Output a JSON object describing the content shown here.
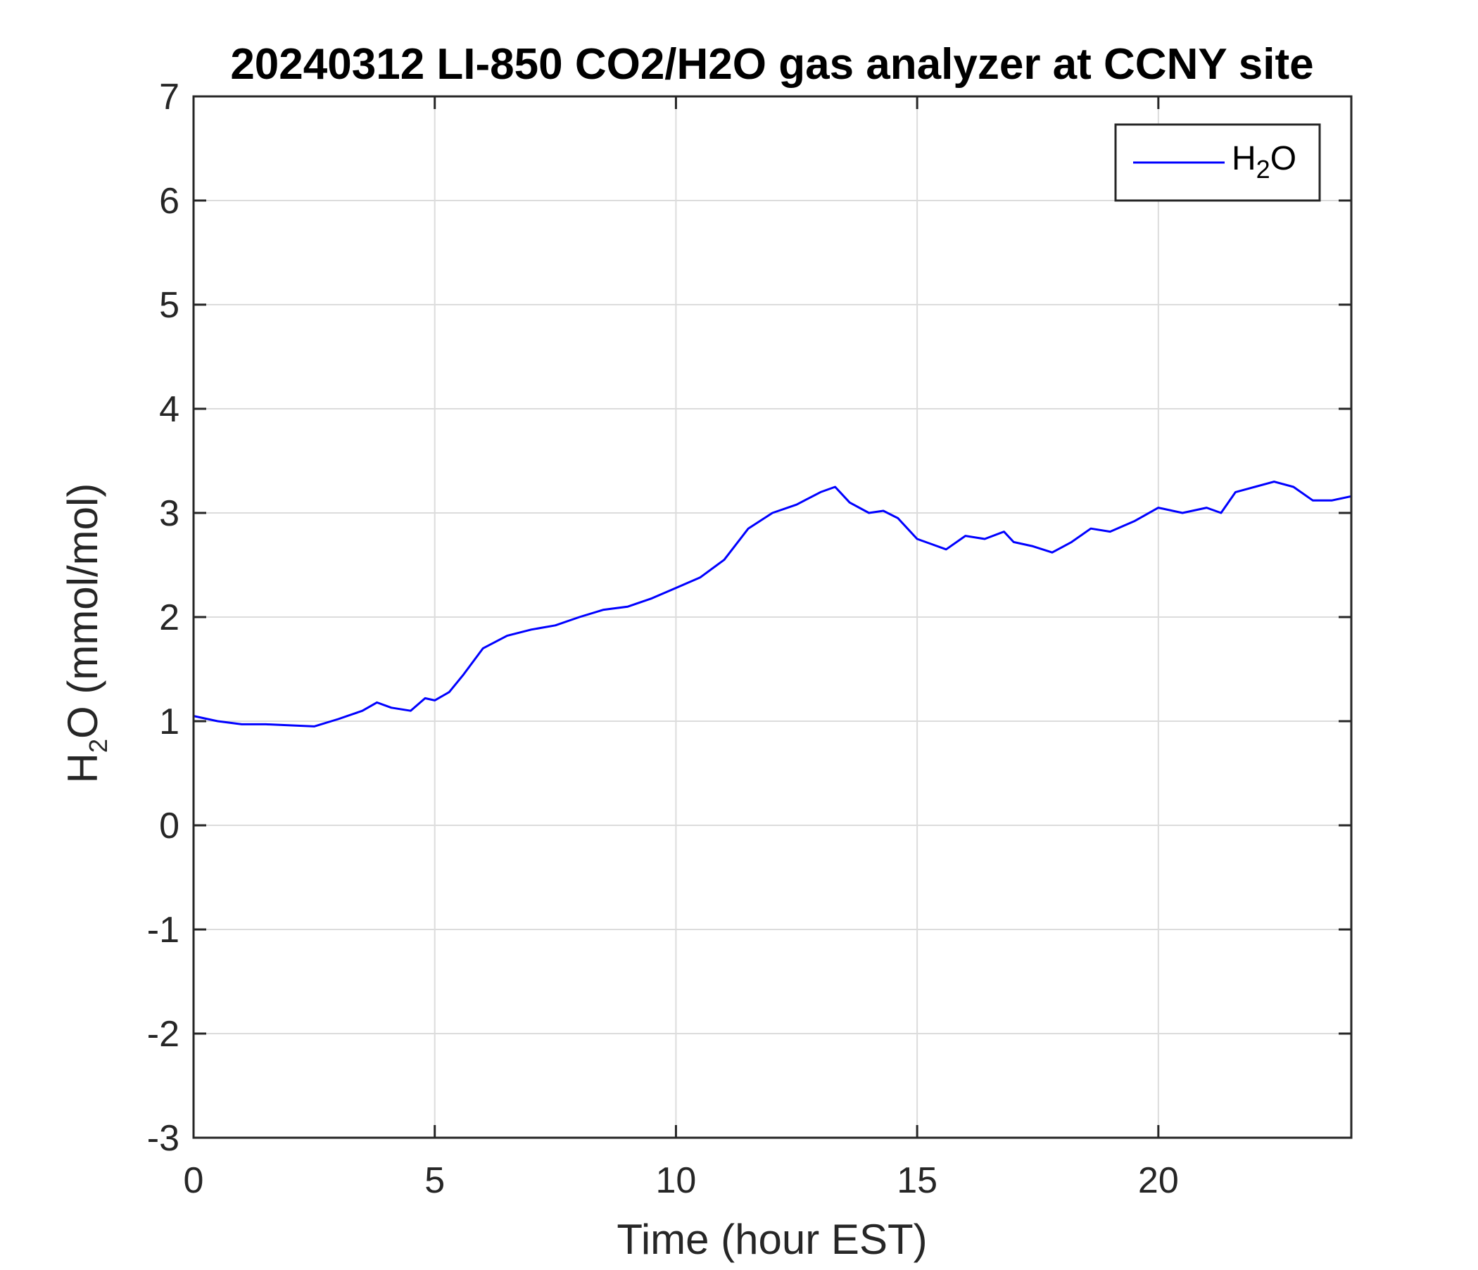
{
  "chart_data": {
    "type": "line",
    "title": "20240312 LI-850 CO2/H2O gas analyzer at CCNY site",
    "xlabel": "Time (hour EST)",
    "ylabel": {
      "main": "H",
      "subscript": "2",
      "rest": "O (mmol/mol)"
    },
    "xlim": [
      0,
      24
    ],
    "ylim": [
      -3,
      7
    ],
    "xticks": [
      "0",
      "5",
      "10",
      "15",
      "20"
    ],
    "yticks": [
      "-3",
      "-2",
      "-1",
      "0",
      "1",
      "2",
      "3",
      "4",
      "5",
      "6",
      "7"
    ],
    "grid": true,
    "legend": {
      "placement": "top-right",
      "entries": [
        {
          "main": "H",
          "subscript": "2",
          "rest": "O"
        }
      ]
    },
    "series": [
      {
        "color": "#0000ff",
        "x": [
          0,
          0.5,
          1,
          1.5,
          2,
          2.5,
          3,
          3.5,
          3.8,
          4.1,
          4.5,
          4.8,
          5.0,
          5.3,
          5.6,
          6.0,
          6.5,
          7.0,
          7.5,
          8.0,
          8.5,
          9.0,
          9.5,
          10.0,
          10.5,
          11.0,
          11.5,
          12.0,
          12.5,
          13.0,
          13.3,
          13.6,
          14.0,
          14.3,
          14.6,
          15.0,
          15.3,
          15.6,
          16.0,
          16.4,
          16.8,
          17.0,
          17.4,
          17.8,
          18.2,
          18.6,
          19.0,
          19.5,
          20.0,
          20.5,
          21.0,
          21.3,
          21.6,
          22.0,
          22.4,
          22.8,
          23.2,
          23.6,
          24.0
        ],
        "y": [
          1.05,
          1.0,
          0.97,
          0.97,
          0.96,
          0.95,
          1.02,
          1.1,
          1.18,
          1.13,
          1.1,
          1.22,
          1.2,
          1.28,
          1.45,
          1.7,
          1.82,
          1.88,
          1.92,
          2.0,
          2.07,
          2.1,
          2.18,
          2.28,
          2.38,
          2.55,
          2.85,
          3.0,
          3.08,
          3.2,
          3.25,
          3.1,
          3.0,
          3.02,
          2.95,
          2.75,
          2.7,
          2.65,
          2.78,
          2.75,
          2.82,
          2.72,
          2.68,
          2.62,
          2.72,
          2.85,
          2.82,
          2.92,
          3.05,
          3.0,
          3.05,
          3.0,
          3.2,
          3.25,
          3.3,
          3.25,
          3.12,
          3.12,
          3.16
        ]
      }
    ]
  }
}
